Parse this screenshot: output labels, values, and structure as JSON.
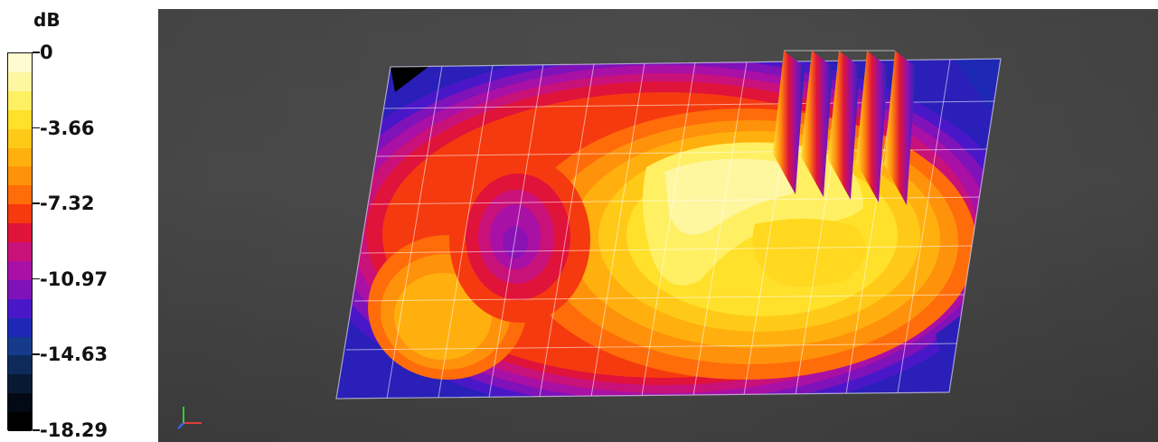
{
  "legend": {
    "unit": "dB",
    "ticks": [
      "0",
      "-3.66",
      "-7.32",
      "-10.97",
      "-14.63",
      "-18.29"
    ],
    "colors": [
      "#fffbd0",
      "#fff6a0",
      "#ffef63",
      "#ffe02a",
      "#ffca17",
      "#ffb00e",
      "#ff920b",
      "#ff6c0a",
      "#f53a0f",
      "#e0133a",
      "#c9117a",
      "#a910a5",
      "#7f12b8",
      "#4a17c8",
      "#1d28b4",
      "#163a8a",
      "#0e2a5a",
      "#081a33",
      "#030a14",
      "#000000"
    ]
  },
  "viewport": {
    "background": "#4a4a4a",
    "axis_indicator": "axis-triad-icon"
  }
}
